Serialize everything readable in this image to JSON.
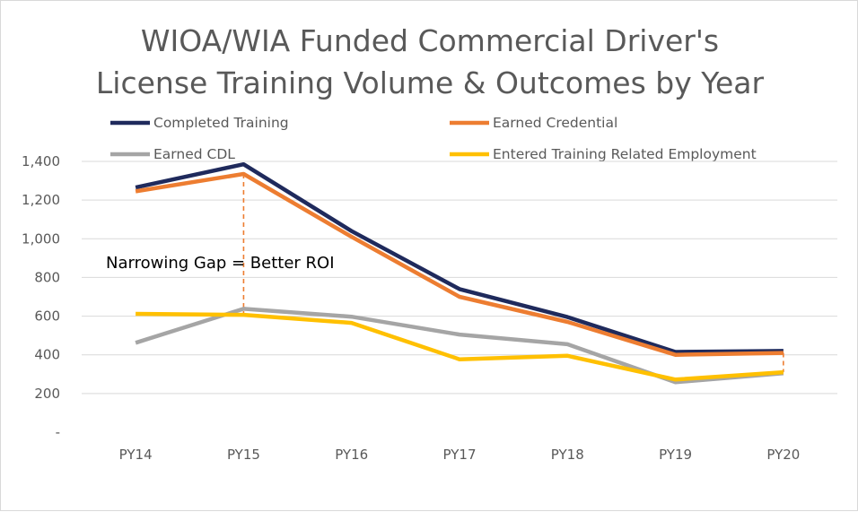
{
  "chart_data": {
    "type": "line",
    "title": "WIOA/WIA Funded Commercial Driver's License Training Volume & Outcomes by Year",
    "title_lines": [
      "WIOA/WIA Funded Commercial Driver's",
      "License Training Volume & Outcomes by Year"
    ],
    "categories": [
      "PY14",
      "PY15",
      "PY16",
      "PY17",
      "PY18",
      "PY19",
      "PY20"
    ],
    "ylim": [
      0,
      1400
    ],
    "yticks": [
      0,
      200,
      400,
      600,
      800,
      1000,
      1200,
      1400
    ],
    "ytick_labels": [
      "-",
      "200",
      "400",
      "600",
      "800",
      "1,000",
      "1,200",
      "1,400"
    ],
    "grid": true,
    "legend_position": "top",
    "series": [
      {
        "name": "Completed Training",
        "color": "#1f2a5c",
        "values": [
          1265,
          1385,
          1040,
          740,
          595,
          415,
          420
        ]
      },
      {
        "name": "Earned Credential",
        "color": "#ed7d31",
        "values": [
          1245,
          1335,
          1010,
          700,
          570,
          400,
          410
        ]
      },
      {
        "name": "Earned CDL",
        "color": "#a5a5a5",
        "values": [
          462,
          638,
          597,
          505,
          455,
          258,
          305
        ]
      },
      {
        "name": "Entered Training Related Employment",
        "color": "#ffc000",
        "values": [
          612,
          607,
          565,
          377,
          395,
          272,
          310
        ]
      }
    ],
    "annotation": {
      "text": "Narrowing Gap = Better ROI"
    },
    "gap_markers": [
      {
        "category": "PY15",
        "from": 1335,
        "to": 607
      },
      {
        "category": "PY20",
        "from": 410,
        "to": 310
      }
    ]
  }
}
